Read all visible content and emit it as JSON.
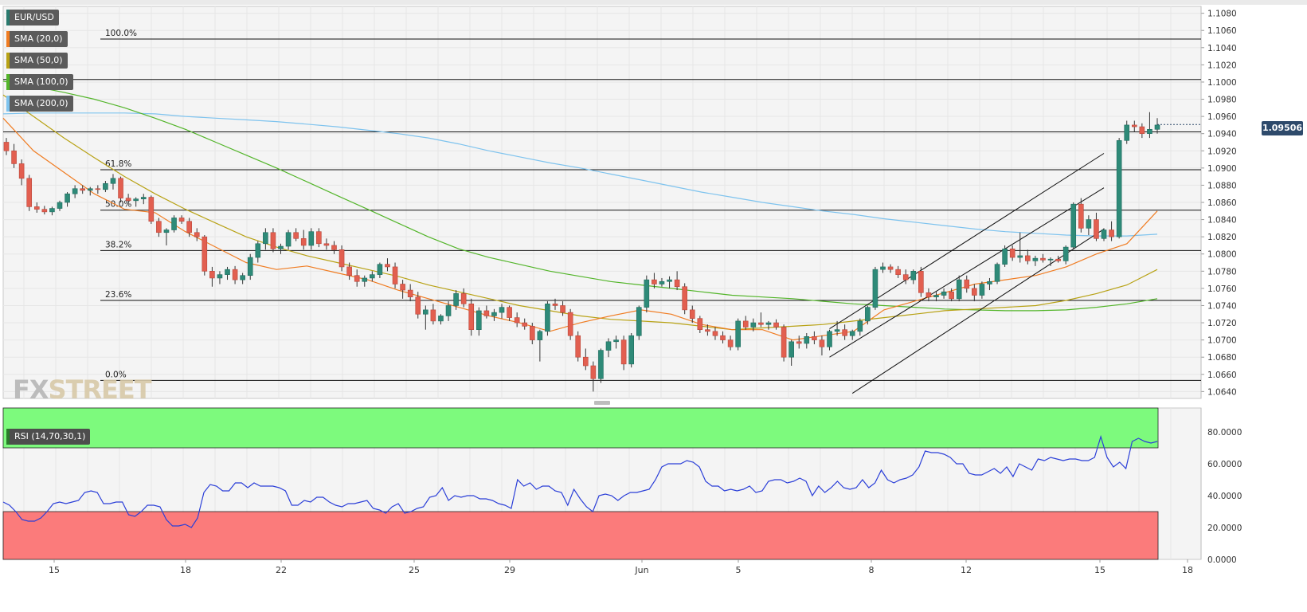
{
  "chart_data": {
    "type": "candlestick",
    "symbol": "EUR/USD",
    "legend": [
      {
        "label": "EUR/USD",
        "color": "#2a7a6e"
      },
      {
        "label": "SMA (20,0)",
        "color": "#f07c22"
      },
      {
        "label": "SMA (50,0)",
        "color": "#b8a215"
      },
      {
        "label": "SMA (100,0)",
        "color": "#53b52a"
      },
      {
        "label": "SMA (200,0)",
        "color": "#7ec3ee"
      }
    ],
    "price_axis_ticks": [
      "1.1080",
      "1.1060",
      "1.1040",
      "1.1020",
      "1.1000",
      "1.0980",
      "1.0960",
      "1.0940",
      "1.0920",
      "1.0900",
      "1.0880",
      "1.0860",
      "1.0840",
      "1.0820",
      "1.0800",
      "1.0780",
      "1.0760",
      "1.0740",
      "1.0720",
      "1.0700",
      "1.0680",
      "1.0660",
      "1.0640"
    ],
    "price_range": [
      1.0632,
      1.1088
    ],
    "last_price": "1.09506",
    "date_labels": [
      "15",
      "18",
      "22",
      "25",
      "29",
      "Jun",
      "5",
      "8",
      "12",
      "15",
      "18"
    ],
    "fibonacci": [
      {
        "label": "100.0%",
        "price": 1.105
      },
      {
        "label": "61.8%",
        "price": 1.0898
      },
      {
        "label": "50.0%",
        "price": 1.0851
      },
      {
        "label": "38.2%",
        "price": 1.0804
      },
      {
        "label": "23.6%",
        "price": 1.0746
      },
      {
        "label": "0.0%",
        "price": 1.0653
      }
    ],
    "horizontal_levels": [
      1.1003,
      1.0942
    ],
    "channel_lines": [
      {
        "x": [
          108,
          144
        ],
        "y": [
          1.0713,
          1.0917
        ]
      },
      {
        "x": [
          108,
          144
        ],
        "y": [
          1.068,
          1.0877
        ]
      },
      {
        "x": [
          111,
          144
        ],
        "y": [
          1.0638,
          1.0829
        ]
      }
    ],
    "candles": [
      [
        1.093,
        1.0935,
        1.0915,
        1.092
      ],
      [
        1.092,
        1.0928,
        1.09,
        1.0905
      ],
      [
        1.0905,
        1.091,
        1.088,
        1.0888
      ],
      [
        1.0888,
        1.0892,
        1.085,
        1.0855
      ],
      [
        1.0855,
        1.086,
        1.0848,
        1.0852
      ],
      [
        1.0852,
        1.0856,
        1.0846,
        1.0849
      ],
      [
        1.0849,
        1.0855,
        1.0845,
        1.0853
      ],
      [
        1.0853,
        1.0862,
        1.085,
        1.086
      ],
      [
        1.086,
        1.0872,
        1.0855,
        1.087
      ],
      [
        1.087,
        1.088,
        1.0865,
        1.0876
      ],
      [
        1.0876,
        1.088,
        1.087,
        1.0874
      ],
      [
        1.0874,
        1.0878,
        1.0868,
        1.0876
      ],
      [
        1.0876,
        1.088,
        1.087,
        1.0875
      ],
      [
        1.0875,
        1.0885,
        1.0872,
        1.0882
      ],
      [
        1.0882,
        1.0893,
        1.0875,
        1.0888
      ],
      [
        1.0888,
        1.089,
        1.086,
        1.0865
      ],
      [
        1.0865,
        1.087,
        1.0858,
        1.0862
      ],
      [
        1.0862,
        1.0866,
        1.0855,
        1.0864
      ],
      [
        1.0864,
        1.087,
        1.0858,
        1.0866
      ],
      [
        1.0866,
        1.0868,
        1.0835,
        1.0838
      ],
      [
        1.0838,
        1.0842,
        1.082,
        1.0825
      ],
      [
        1.0825,
        1.083,
        1.081,
        1.0828
      ],
      [
        1.0828,
        1.0845,
        1.0825,
        1.0842
      ],
      [
        1.0842,
        1.0845,
        1.0835,
        1.0838
      ],
      [
        1.0838,
        1.0842,
        1.082,
        1.0825
      ],
      [
        1.0825,
        1.083,
        1.0815,
        1.082
      ],
      [
        1.082,
        1.0822,
        1.0775,
        1.078
      ],
      [
        1.078,
        1.0785,
        1.0762,
        1.0772
      ],
      [
        1.0772,
        1.078,
        1.0765,
        1.0776
      ],
      [
        1.0776,
        1.0785,
        1.077,
        1.0782
      ],
      [
        1.0782,
        1.0786,
        1.0765,
        1.077
      ],
      [
        1.077,
        1.0778,
        1.0765,
        1.0775
      ],
      [
        1.0775,
        1.08,
        1.077,
        1.0796
      ],
      [
        1.0796,
        1.0815,
        1.079,
        1.0812
      ],
      [
        1.0812,
        1.083,
        1.0805,
        1.0825
      ],
      [
        1.0825,
        1.083,
        1.0802,
        1.0806
      ],
      [
        1.0806,
        1.0812,
        1.08,
        1.0809
      ],
      [
        1.0809,
        1.0828,
        1.0805,
        1.0825
      ],
      [
        1.0825,
        1.083,
        1.0815,
        1.0818
      ],
      [
        1.0818,
        1.0828,
        1.0805,
        1.081
      ],
      [
        1.081,
        1.083,
        1.0805,
        1.0826
      ],
      [
        1.0826,
        1.083,
        1.0808,
        1.0812
      ],
      [
        1.0812,
        1.0818,
        1.0805,
        1.081
      ],
      [
        1.081,
        1.0815,
        1.08,
        1.0805
      ],
      [
        1.0805,
        1.081,
        1.078,
        1.0785
      ],
      [
        1.0785,
        1.079,
        1.077,
        1.0775
      ],
      [
        1.0775,
        1.0782,
        1.0762,
        1.0768
      ],
      [
        1.0768,
        1.0775,
        1.0762,
        1.0772
      ],
      [
        1.0772,
        1.078,
        1.0768,
        1.0776
      ],
      [
        1.0776,
        1.079,
        1.0772,
        1.0788
      ],
      [
        1.0788,
        1.0795,
        1.078,
        1.0785
      ],
      [
        1.0785,
        1.079,
        1.076,
        1.0765
      ],
      [
        1.0765,
        1.077,
        1.0748,
        1.0758
      ],
      [
        1.0758,
        1.0765,
        1.0745,
        1.075
      ],
      [
        1.075,
        1.0756,
        1.0725,
        1.073
      ],
      [
        1.073,
        1.074,
        1.0712,
        1.0735
      ],
      [
        1.0735,
        1.0742,
        1.0718,
        1.0722
      ],
      [
        1.0722,
        1.073,
        1.0718,
        1.0728
      ],
      [
        1.0728,
        1.0745,
        1.0722,
        1.074
      ],
      [
        1.074,
        1.0758,
        1.0735,
        1.0754
      ],
      [
        1.0754,
        1.076,
        1.0738,
        1.0742
      ],
      [
        1.0742,
        1.0748,
        1.0705,
        1.0712
      ],
      [
        1.0712,
        1.0738,
        1.0705,
        1.0734
      ],
      [
        1.0734,
        1.074,
        1.0725,
        1.0728
      ],
      [
        1.0728,
        1.0736,
        1.0722,
        1.0732
      ],
      [
        1.0732,
        1.0742,
        1.0725,
        1.0738
      ],
      [
        1.0738,
        1.074,
        1.0722,
        1.0726
      ],
      [
        1.0726,
        1.0732,
        1.0715,
        1.072
      ],
      [
        1.072,
        1.0725,
        1.0712,
        1.0716
      ],
      [
        1.0716,
        1.072,
        1.0695,
        1.07
      ],
      [
        1.07,
        1.0712,
        1.0675,
        1.071
      ],
      [
        1.071,
        1.0745,
        1.0705,
        1.0742
      ],
      [
        1.0742,
        1.0748,
        1.0735,
        1.074
      ],
      [
        1.074,
        1.0745,
        1.0728,
        1.0732
      ],
      [
        1.0732,
        1.0736,
        1.07,
        1.0705
      ],
      [
        1.0705,
        1.071,
        1.0675,
        1.068
      ],
      [
        1.068,
        1.069,
        1.0665,
        1.067
      ],
      [
        1.067,
        1.0675,
        1.064,
        1.0655
      ],
      [
        1.0655,
        1.069,
        1.065,
        1.0688
      ],
      [
        1.0688,
        1.0702,
        1.068,
        1.0698
      ],
      [
        1.0698,
        1.0705,
        1.069,
        1.07
      ],
      [
        1.07,
        1.0705,
        1.0665,
        1.0672
      ],
      [
        1.0672,
        1.0708,
        1.0668,
        1.0705
      ],
      [
        1.0705,
        1.074,
        1.07,
        1.0738
      ],
      [
        1.0738,
        1.0775,
        1.0732,
        1.077
      ],
      [
        1.077,
        1.0778,
        1.076,
        1.0765
      ],
      [
        1.0765,
        1.0772,
        1.0762,
        1.0768
      ],
      [
        1.0768,
        1.0774,
        1.076,
        1.077
      ],
      [
        1.077,
        1.078,
        1.0758,
        1.0762
      ],
      [
        1.0762,
        1.0766,
        1.073,
        1.0735
      ],
      [
        1.0735,
        1.074,
        1.072,
        1.0725
      ],
      [
        1.0725,
        1.0728,
        1.0708,
        1.0712
      ],
      [
        1.0712,
        1.0718,
        1.0705,
        1.071
      ],
      [
        1.071,
        1.0715,
        1.07,
        1.0705
      ],
      [
        1.0705,
        1.071,
        1.0696,
        1.07
      ],
      [
        1.07,
        1.0705,
        1.0688,
        1.0692
      ],
      [
        1.0692,
        1.0725,
        1.0688,
        1.0722
      ],
      [
        1.0722,
        1.0728,
        1.0712,
        1.0715
      ],
      [
        1.0715,
        1.0725,
        1.071,
        1.072
      ],
      [
        1.072,
        1.0732,
        1.0715,
        1.0718
      ],
      [
        1.0718,
        1.0722,
        1.0712,
        1.072
      ],
      [
        1.072,
        1.0724,
        1.0712,
        1.0715
      ],
      [
        1.0715,
        1.0718,
        1.0675,
        1.068
      ],
      [
        1.068,
        1.07,
        1.067,
        1.0698
      ],
      [
        1.0698,
        1.0705,
        1.069,
        1.0696
      ],
      [
        1.0696,
        1.0708,
        1.069,
        1.0704
      ],
      [
        1.0704,
        1.071,
        1.0695,
        1.07
      ],
      [
        1.07,
        1.0705,
        1.0682,
        1.0692
      ],
      [
        1.0692,
        1.0712,
        1.0688,
        1.071
      ],
      [
        1.071,
        1.0722,
        1.0705,
        1.0712
      ],
      [
        1.0712,
        1.0718,
        1.07,
        1.0705
      ],
      [
        1.0705,
        1.0712,
        1.07,
        1.071
      ],
      [
        1.071,
        1.0725,
        1.0705,
        1.0722
      ],
      [
        1.0722,
        1.074,
        1.0718,
        1.0738
      ],
      [
        1.0738,
        1.0785,
        1.0735,
        1.0782
      ],
      [
        1.0782,
        1.079,
        1.0778,
        1.0785
      ],
      [
        1.0785,
        1.0788,
        1.0778,
        1.0782
      ],
      [
        1.0782,
        1.0786,
        1.0772,
        1.0776
      ],
      [
        1.0776,
        1.0782,
        1.0765,
        1.077
      ],
      [
        1.077,
        1.0782,
        1.0765,
        1.078
      ],
      [
        1.078,
        1.0785,
        1.075,
        1.0755
      ],
      [
        1.0755,
        1.076,
        1.0745,
        1.075
      ],
      [
        1.075,
        1.0756,
        1.0745,
        1.0752
      ],
      [
        1.0752,
        1.076,
        1.0748,
        1.0756
      ],
      [
        1.0756,
        1.076,
        1.0745,
        1.0748
      ],
      [
        1.0748,
        1.0775,
        1.0745,
        1.077
      ],
      [
        1.077,
        1.0775,
        1.0755,
        1.076
      ],
      [
        1.076,
        1.0765,
        1.0745,
        1.0752
      ],
      [
        1.0752,
        1.0768,
        1.0748,
        1.0765
      ],
      [
        1.0765,
        1.0772,
        1.0758,
        1.0768
      ],
      [
        1.0768,
        1.079,
        1.0765,
        1.0788
      ],
      [
        1.0788,
        1.081,
        1.0785,
        1.0806
      ],
      [
        1.0806,
        1.081,
        1.0792,
        1.0796
      ],
      [
        1.0796,
        1.0825,
        1.079,
        1.0798
      ],
      [
        1.0798,
        1.0805,
        1.0788,
        1.0792
      ],
      [
        1.0792,
        1.0798,
        1.0786,
        1.0795
      ],
      [
        1.0795,
        1.08,
        1.079,
        1.0793
      ],
      [
        1.0793,
        1.0796,
        1.0786,
        1.0794
      ],
      [
        1.0794,
        1.0798,
        1.079,
        1.0792
      ],
      [
        1.0792,
        1.081,
        1.0788,
        1.0808
      ],
      [
        1.0808,
        1.086,
        1.0805,
        1.0858
      ],
      [
        1.0858,
        1.0865,
        1.0825,
        1.083
      ],
      [
        1.083,
        1.0845,
        1.0822,
        1.084
      ],
      [
        1.084,
        1.0848,
        1.0815,
        1.0818
      ],
      [
        1.0818,
        1.083,
        1.0815,
        1.0828
      ],
      [
        1.0828,
        1.0838,
        1.0815,
        1.082
      ],
      [
        1.082,
        1.0935,
        1.0818,
        1.0932
      ],
      [
        1.0932,
        1.0955,
        1.0928,
        1.095
      ],
      [
        1.095,
        1.0955,
        1.0942,
        1.0948
      ],
      [
        1.0948,
        1.0952,
        1.0935,
        1.094
      ],
      [
        1.094,
        1.0965,
        1.0935,
        1.0945
      ],
      [
        1.0945,
        1.0958,
        1.094,
        1.095
      ]
    ],
    "sma20": [
      1.0958,
      1.092,
      1.0895,
      1.087,
      1.0852,
      1.0848,
      1.0826,
      1.0808,
      1.079,
      1.0782,
      1.0786,
      1.0778,
      1.077,
      1.0758,
      1.0748,
      1.0738,
      1.0728,
      1.072,
      1.071,
      1.072,
      1.0728,
      1.0735,
      1.073,
      1.0718,
      1.0712,
      1.0712,
      1.07,
      1.0705,
      1.071,
      1.0735,
      1.0745,
      1.0755,
      1.0765,
      1.077,
      1.0775,
      1.0785,
      1.08,
      1.0812,
      1.085
    ],
    "sma50": [
      1.0985,
      1.096,
      1.0935,
      1.0912,
      1.089,
      1.087,
      1.0852,
      1.0836,
      1.082,
      1.0808,
      1.0798,
      1.079,
      1.0782,
      1.0774,
      1.0764,
      1.0756,
      1.0748,
      1.074,
      1.0734,
      1.0728,
      1.0724,
      1.0722,
      1.072,
      1.0716,
      1.0712,
      1.0714,
      1.0716,
      1.0718,
      1.0722,
      1.0726,
      1.073,
      1.0734,
      1.0736,
      1.0738,
      1.074,
      1.0746,
      1.0754,
      1.0764,
      1.0782
    ],
    "sma100": [
      1.1001,
      1.0995,
      1.0988,
      1.098,
      1.097,
      1.0958,
      1.0945,
      1.093,
      1.0915,
      1.09,
      1.0884,
      1.0868,
      1.0852,
      1.0836,
      1.082,
      1.0806,
      1.0796,
      1.0788,
      1.078,
      1.0774,
      1.0768,
      1.0764,
      1.076,
      1.0756,
      1.0752,
      1.075,
      1.0748,
      1.0745,
      1.0742,
      1.074,
      1.0738,
      1.0736,
      1.0735,
      1.0734,
      1.0734,
      1.0735,
      1.0738,
      1.0742,
      1.0748
    ],
    "sma200": [
      1.0963,
      1.0964,
      1.0964,
      1.0964,
      1.0964,
      1.0963,
      1.096,
      1.0958,
      1.0956,
      1.0954,
      1.0951,
      1.0948,
      1.0944,
      1.094,
      1.0935,
      1.0928,
      1.092,
      1.0913,
      1.0906,
      1.09,
      1.0893,
      1.0886,
      1.0879,
      1.0872,
      1.0866,
      1.086,
      1.0855,
      1.085,
      1.0846,
      1.0841,
      1.0837,
      1.0833,
      1.0829,
      1.0826,
      1.0824,
      1.0822,
      1.0821,
      1.0821,
      1.0823
    ],
    "rsi_title": "RSI (14,70,30,1)",
    "rsi_axis_ticks": [
      "80.0000",
      "60.0000",
      "40.0000",
      "20.0000",
      "0.0000"
    ],
    "rsi_levels": {
      "overbought": 70,
      "oversold": 30
    },
    "rsi_values": [
      36,
      34,
      30,
      25,
      24,
      24,
      26,
      30,
      35,
      36,
      35,
      36,
      37,
      42,
      43,
      42,
      35,
      35,
      36,
      36,
      28,
      27,
      30,
      34,
      34,
      33,
      25,
      21,
      21,
      22,
      20,
      26,
      42,
      47,
      46,
      43,
      43,
      48,
      48,
      45,
      48,
      46,
      46,
      46,
      45,
      43,
      34,
      34,
      37,
      36,
      39,
      39,
      36,
      34,
      33,
      35,
      35,
      36,
      37,
      32,
      31,
      29,
      33,
      35,
      29,
      30,
      32,
      33,
      39,
      40,
      45,
      37,
      40,
      39,
      40,
      40,
      38,
      38,
      37,
      35,
      34,
      32,
      50,
      46,
      48,
      44,
      46,
      46,
      43,
      42,
      34,
      44,
      38,
      33,
      30,
      40,
      41,
      40,
      37,
      40,
      42,
      42,
      43,
      44,
      50,
      58,
      60,
      60,
      60,
      62,
      61,
      58,
      49,
      46,
      46,
      43,
      44,
      43,
      44,
      46,
      42,
      43,
      49,
      50,
      50,
      48,
      49,
      51,
      49,
      40,
      46,
      42,
      45,
      49,
      45,
      44,
      45,
      50,
      45,
      48,
      56,
      50,
      48,
      50,
      51,
      53,
      58,
      68,
      67,
      67,
      66,
      64,
      60,
      60,
      54,
      53,
      53,
      55,
      57,
      54,
      58,
      52,
      60,
      58,
      56,
      63,
      62,
      64,
      63,
      62,
      63,
      63,
      62,
      62,
      64,
      77,
      64,
      58,
      61,
      57,
      74,
      76,
      74,
      73,
      74
    ]
  },
  "watermark": {
    "fx": "FX",
    "street": "STREET"
  }
}
